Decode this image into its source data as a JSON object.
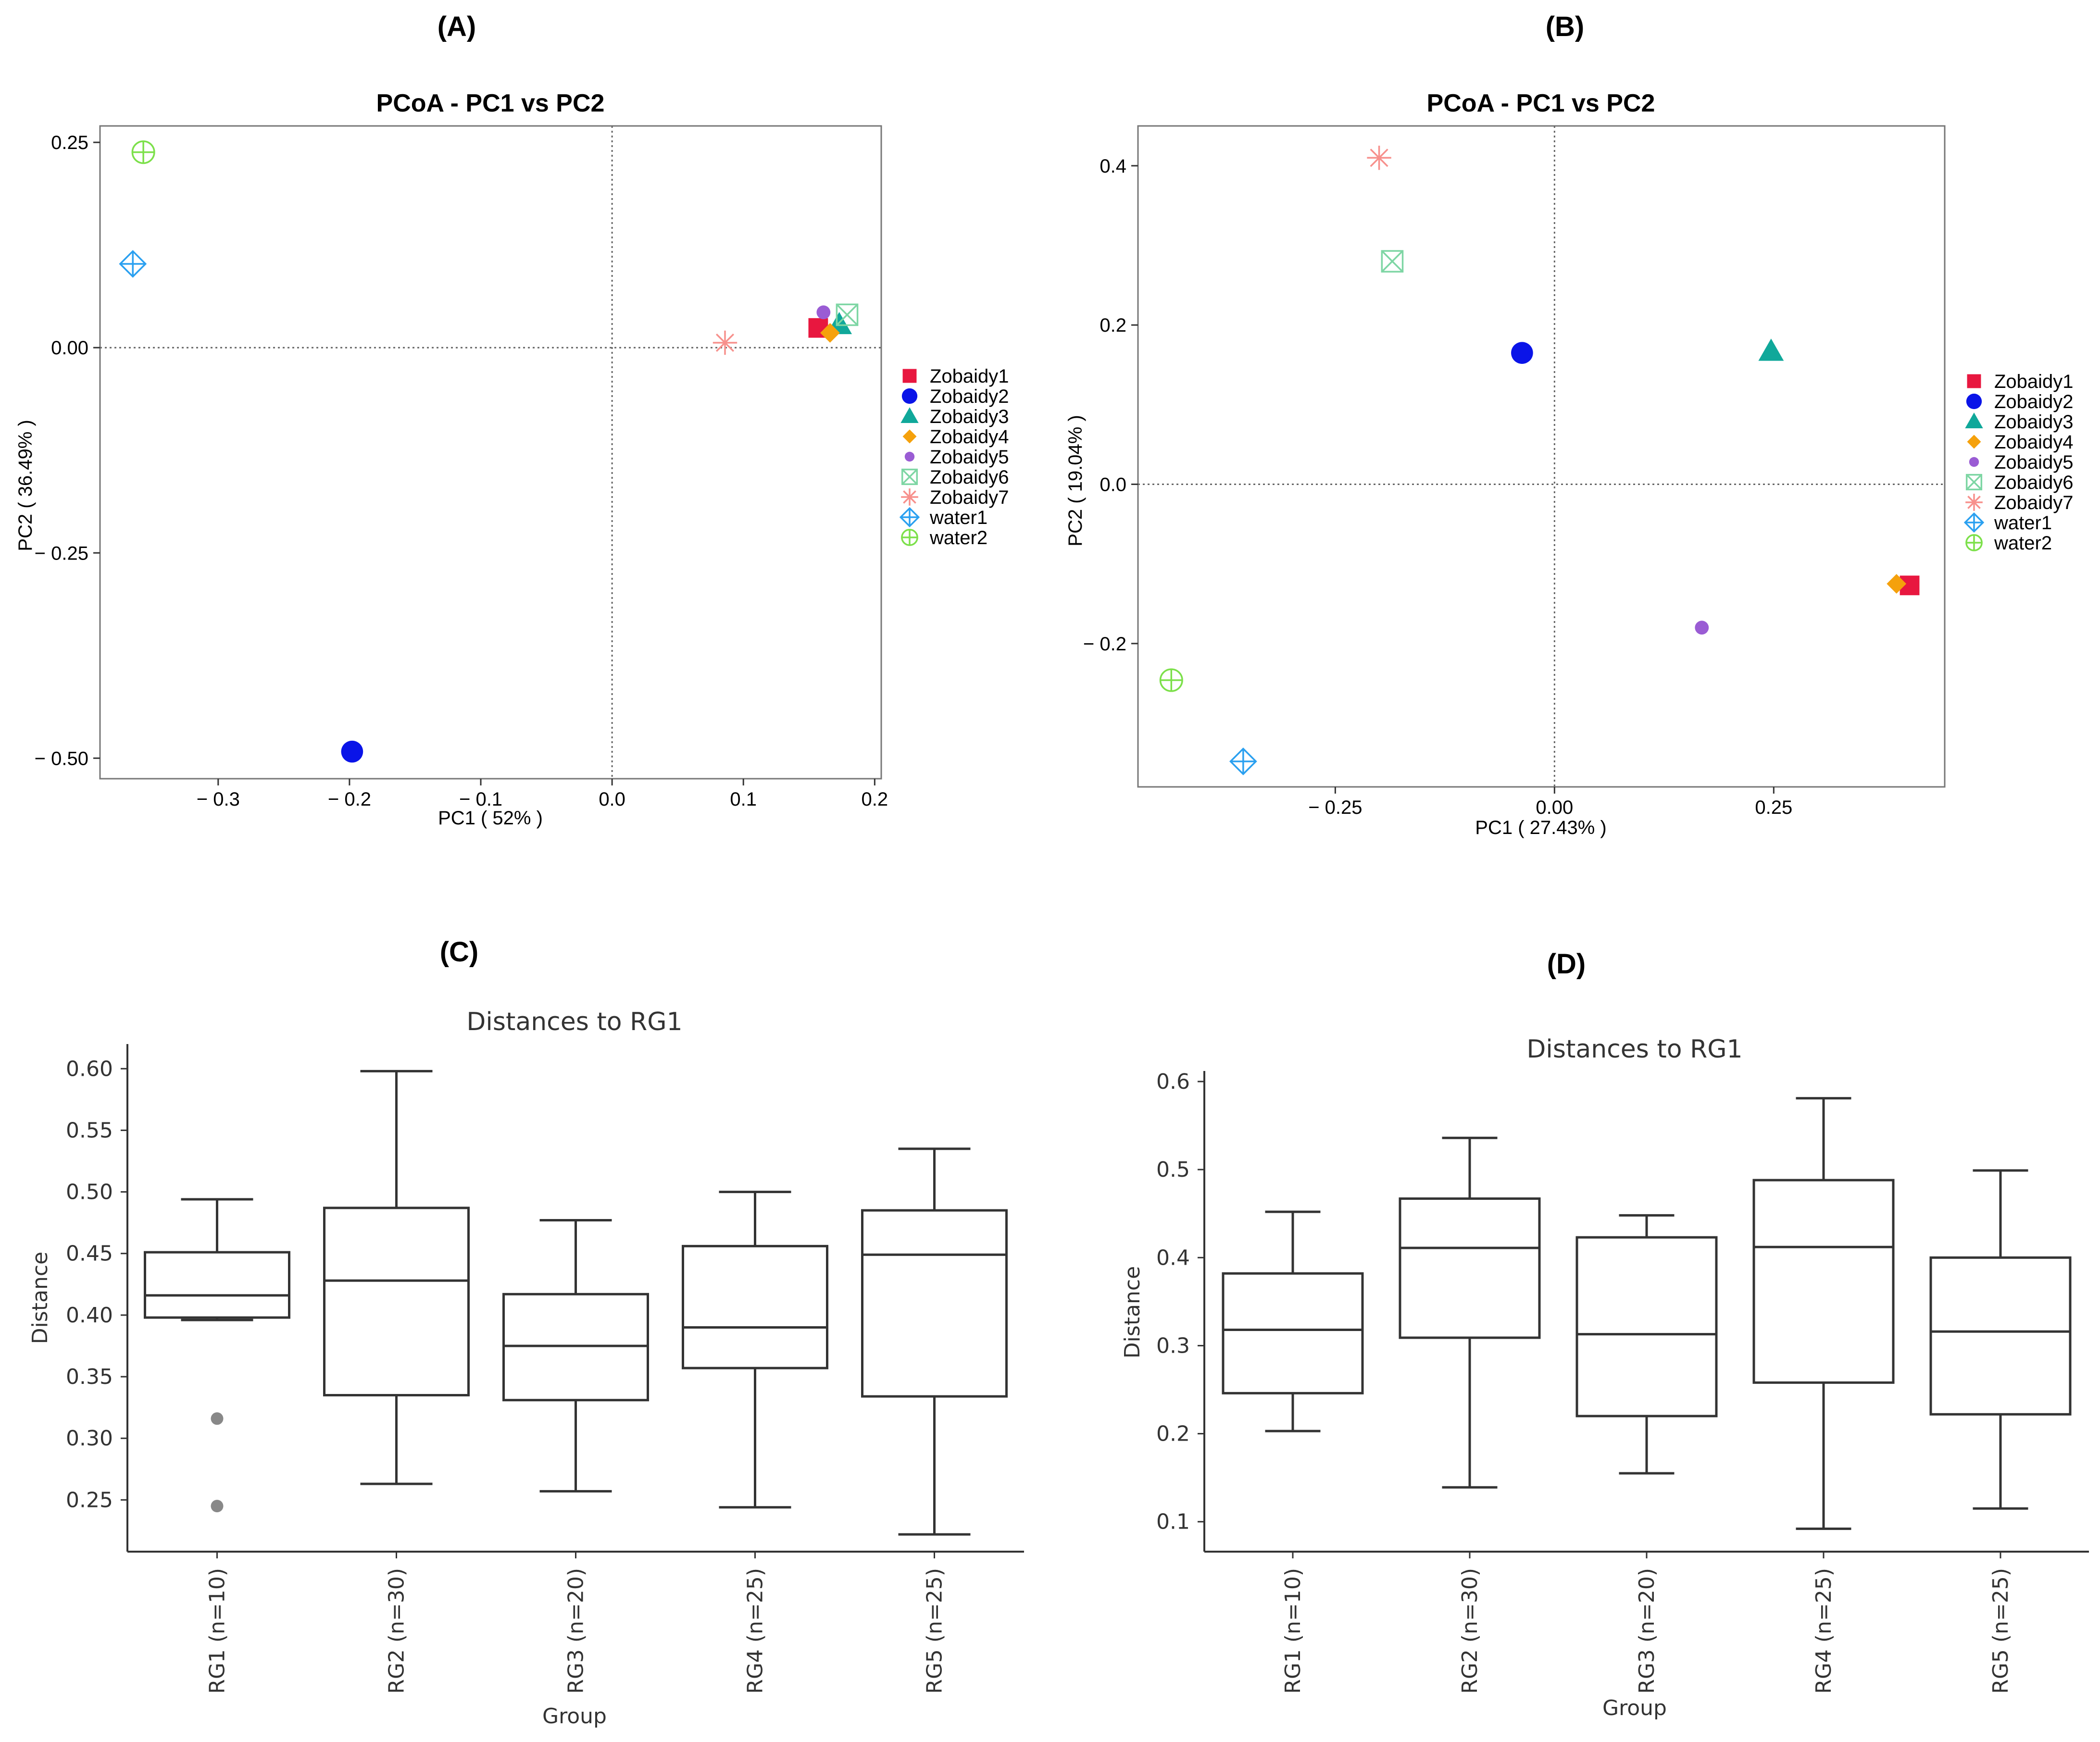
{
  "panels": {
    "A": {
      "label": "(A)"
    },
    "B": {
      "label": "(B)"
    },
    "C": {
      "label": "(C)"
    },
    "D": {
      "label": "(D)"
    }
  },
  "colors": {
    "Zobaidy1": "#e8173f",
    "Zobaidy2": "#0a14e8",
    "Zobaidy3": "#10a89a",
    "Zobaidy4": "#f5a10c",
    "Zobaidy5": "#9a5cd4",
    "Zobaidy6": "#7ed6a4",
    "Zobaidy7": "#f7908c",
    "water1": "#2aa0f0",
    "water2": "#7ce04a",
    "box": "#333333"
  },
  "chart_data": [
    {
      "id": "A",
      "type": "scatter",
      "title": "PCoA - PC1 vs PC2",
      "xlabel": "PC1 ( 52% )",
      "ylabel": "PC2 ( 36.49% )",
      "xlim": [
        -0.39,
        0.205
      ],
      "ylim": [
        -0.525,
        0.27
      ],
      "xticks": [
        -0.3,
        -0.2,
        -0.1,
        0.0,
        0.1,
        0.2
      ],
      "xtick_labels": [
        "− 0.3",
        "− 0.2",
        "− 0.1",
        "0.0",
        "0.1",
        "0.2"
      ],
      "yticks": [
        0.25,
        0.0,
        -0.25,
        -0.5
      ],
      "ytick_labels": [
        "0.25",
        "0.00",
        "− 0.25",
        "− 0.50"
      ],
      "reference_lines": {
        "x": 0,
        "y": 0
      },
      "legend_position": "right",
      "points": [
        {
          "name": "Zobaidy1",
          "x": 0.157,
          "y": 0.024,
          "marker": "square"
        },
        {
          "name": "Zobaidy2",
          "x": -0.198,
          "y": -0.492,
          "marker": "circle"
        },
        {
          "name": "Zobaidy3",
          "x": 0.173,
          "y": 0.028,
          "marker": "triangle"
        },
        {
          "name": "Zobaidy4",
          "x": 0.166,
          "y": 0.018,
          "marker": "diamond"
        },
        {
          "name": "Zobaidy5",
          "x": 0.161,
          "y": 0.043,
          "marker": "smallcircle"
        },
        {
          "name": "Zobaidy6",
          "x": 0.179,
          "y": 0.04,
          "marker": "squarex"
        },
        {
          "name": "Zobaidy7",
          "x": 0.086,
          "y": 0.006,
          "marker": "asterisk"
        },
        {
          "name": "water1",
          "x": -0.365,
          "y": 0.102,
          "marker": "diamondplus"
        },
        {
          "name": "water2",
          "x": -0.357,
          "y": 0.238,
          "marker": "circleplus"
        }
      ],
      "legend": [
        "Zobaidy1",
        "Zobaidy2",
        "Zobaidy3",
        "Zobaidy4",
        "Zobaidy5",
        "Zobaidy6",
        "Zobaidy7",
        "water1",
        "water2"
      ]
    },
    {
      "id": "B",
      "type": "scatter",
      "title": "PCoA - PC1 vs PC2",
      "xlabel": "PC1 ( 27.43% )",
      "ylabel": "PC2 ( 19.04% )",
      "xlim": [
        -0.475,
        0.445
      ],
      "ylim": [
        -0.38,
        0.45
      ],
      "xticks": [
        -0.25,
        0.0,
        0.25
      ],
      "xtick_labels": [
        "− 0.25",
        "0.00",
        "0.25"
      ],
      "yticks": [
        0.4,
        0.2,
        0.0,
        -0.2
      ],
      "ytick_labels": [
        "0.4",
        "0.2",
        "0.0",
        "− 0.2"
      ],
      "reference_lines": {
        "x": 0,
        "y": 0
      },
      "legend_position": "right",
      "points": [
        {
          "name": "Zobaidy1",
          "x": 0.405,
          "y": -0.127,
          "marker": "square"
        },
        {
          "name": "Zobaidy2",
          "x": -0.037,
          "y": 0.165,
          "marker": "circle"
        },
        {
          "name": "Zobaidy3",
          "x": 0.247,
          "y": 0.167,
          "marker": "triangle"
        },
        {
          "name": "Zobaidy4",
          "x": 0.39,
          "y": -0.125,
          "marker": "diamond"
        },
        {
          "name": "Zobaidy5",
          "x": 0.168,
          "y": -0.18,
          "marker": "smallcircle"
        },
        {
          "name": "Zobaidy6",
          "x": -0.185,
          "y": 0.28,
          "marker": "squarex"
        },
        {
          "name": "Zobaidy7",
          "x": -0.2,
          "y": 0.41,
          "marker": "asterisk"
        },
        {
          "name": "water1",
          "x": -0.355,
          "y": -0.348,
          "marker": "diamondplus"
        },
        {
          "name": "water2",
          "x": -0.437,
          "y": -0.246,
          "marker": "circleplus"
        }
      ],
      "legend": [
        "Zobaidy1",
        "Zobaidy2",
        "Zobaidy3",
        "Zobaidy4",
        "Zobaidy5",
        "Zobaidy6",
        "Zobaidy7",
        "water1",
        "water2"
      ]
    },
    {
      "id": "C",
      "type": "box",
      "title": "Distances to RG1",
      "xlabel": "Group",
      "ylabel": "Distance",
      "ylim": [
        0.208,
        0.62
      ],
      "yticks": [
        0.25,
        0.3,
        0.35,
        0.4,
        0.45,
        0.5,
        0.55,
        0.6
      ],
      "ytick_labels": [
        "0.25",
        "0.30",
        "0.35",
        "0.40",
        "0.45",
        "0.50",
        "0.55",
        "0.60"
      ],
      "categories": [
        "RG1 (n=10)",
        "RG2 (n=30)",
        "RG3 (n=20)",
        "RG4 (n=25)",
        "RG5 (n=25)"
      ],
      "boxes": [
        {
          "whisker_low": 0.396,
          "q1": 0.398,
          "median": 0.416,
          "q3": 0.451,
          "whisker_high": 0.494,
          "outliers": [
            0.316,
            0.245
          ]
        },
        {
          "whisker_low": 0.263,
          "q1": 0.335,
          "median": 0.428,
          "q3": 0.487,
          "whisker_high": 0.598,
          "outliers": []
        },
        {
          "whisker_low": 0.257,
          "q1": 0.331,
          "median": 0.375,
          "q3": 0.417,
          "whisker_high": 0.477,
          "outliers": []
        },
        {
          "whisker_low": 0.244,
          "q1": 0.357,
          "median": 0.39,
          "q3": 0.456,
          "whisker_high": 0.5,
          "outliers": []
        },
        {
          "whisker_low": 0.222,
          "q1": 0.334,
          "median": 0.449,
          "q3": 0.485,
          "whisker_high": 0.535,
          "outliers": []
        }
      ]
    },
    {
      "id": "D",
      "type": "box",
      "title": "Distances to RG1",
      "xlabel": "Group",
      "ylabel": "Distance",
      "ylim": [
        0.066,
        0.612
      ],
      "yticks": [
        0.1,
        0.2,
        0.3,
        0.4,
        0.5,
        0.6
      ],
      "ytick_labels": [
        "0.1",
        "0.2",
        "0.3",
        "0.4",
        "0.5",
        "0.6"
      ],
      "categories": [
        "RG1 (n=10)",
        "RG2 (n=30)",
        "RG3 (n=20)",
        "RG4 (n=25)",
        "RG5 (n=25)"
      ],
      "boxes": [
        {
          "whisker_low": 0.203,
          "q1": 0.246,
          "median": 0.318,
          "q3": 0.382,
          "whisker_high": 0.452,
          "outliers": []
        },
        {
          "whisker_low": 0.139,
          "q1": 0.309,
          "median": 0.411,
          "q3": 0.467,
          "whisker_high": 0.536,
          "outliers": []
        },
        {
          "whisker_low": 0.155,
          "q1": 0.22,
          "median": 0.313,
          "q3": 0.423,
          "whisker_high": 0.448,
          "outliers": []
        },
        {
          "whisker_low": 0.092,
          "q1": 0.258,
          "median": 0.412,
          "q3": 0.488,
          "whisker_high": 0.581,
          "outliers": []
        },
        {
          "whisker_low": 0.115,
          "q1": 0.222,
          "median": 0.316,
          "q3": 0.4,
          "whisker_high": 0.499,
          "outliers": []
        }
      ]
    }
  ]
}
